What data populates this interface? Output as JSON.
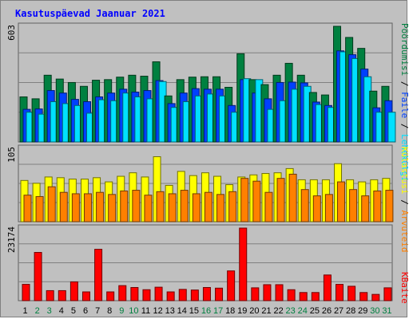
{
  "title": "Kasutuspäevad Jaanuar 2021",
  "colors": {
    "background": "#c0c0c0",
    "panel": "#c0c0c0",
    "grid": "#808080",
    "hits": "#008040",
    "files": "#0040ff",
    "pages": "#00e0ff",
    "visits": "#ffff00",
    "sites": "#ff8000",
    "kbytes": "#ff0000",
    "weekday_label": "#000000",
    "weekend_label": "#008040"
  },
  "chart_data": [
    {
      "type": "bar",
      "panel": "top",
      "ymax_label": "603",
      "ylim": [
        0,
        603
      ],
      "right_labels": [
        "Pöördumisi",
        "Faile",
        "Lehekülgi"
      ],
      "categories": [
        "1",
        "2",
        "3",
        "4",
        "5",
        "6",
        "7",
        "8",
        "9",
        "10",
        "11",
        "12",
        "13",
        "14",
        "15",
        "16",
        "17",
        "18",
        "19",
        "20",
        "21",
        "22",
        "23",
        "24",
        "25",
        "26",
        "27",
        "28",
        "29",
        "30",
        "31"
      ],
      "series": [
        {
          "name": "Pöördumisi",
          "values": [
            235,
            225,
            348,
            328,
            310,
            290,
            322,
            325,
            338,
            348,
            343,
            418,
            240,
            325,
            338,
            340,
            340,
            285,
            460,
            325,
            299,
            348,
            410,
            348,
            258,
            245,
            603,
            545,
            488,
            265,
            290
          ]
        },
        {
          "name": "Faile",
          "values": [
            170,
            172,
            268,
            255,
            222,
            210,
            235,
            255,
            275,
            260,
            268,
            320,
            200,
            255,
            278,
            275,
            275,
            190,
            325,
            255,
            225,
            310,
            312,
            308,
            208,
            190,
            475,
            455,
            380,
            178,
            215
          ]
        },
        {
          "name": "Lehekülgi",
          "values": [
            155,
            145,
            210,
            200,
            190,
            150,
            220,
            215,
            255,
            235,
            225,
            315,
            180,
            210,
            240,
            250,
            240,
            155,
            330,
            325,
            170,
            215,
            275,
            290,
            195,
            180,
            470,
            435,
            340,
            155,
            155
          ]
        }
      ]
    },
    {
      "type": "bar",
      "panel": "middle",
      "ymax_label": "105",
      "ylim": [
        0,
        105
      ],
      "right_labels": [
        "Arvuteid",
        "Külastusi"
      ],
      "series": [
        {
          "name": "Külastusi",
          "values": [
            59,
            55,
            64,
            63,
            61,
            61,
            63,
            57,
            65,
            70,
            64,
            93,
            52,
            72,
            66,
            70,
            65,
            53,
            64,
            67,
            69,
            70,
            76,
            60,
            60,
            60,
            83,
            60,
            57,
            60,
            62
          ]
        },
        {
          "name": "Arvuteid",
          "values": [
            38,
            36,
            50,
            42,
            40,
            40,
            42,
            39,
            44,
            45,
            38,
            43,
            40,
            45,
            40,
            42,
            39,
            43,
            62,
            58,
            42,
            62,
            68,
            46,
            37,
            39,
            57,
            46,
            37,
            44,
            45
          ]
        }
      ]
    },
    {
      "type": "bar",
      "panel": "bottom",
      "ymax_label": "23174",
      "ylim": [
        0,
        23174
      ],
      "right_labels": [
        "KBaite"
      ],
      "series": [
        {
          "name": "KBaite",
          "values": [
            5200,
            15400,
            3200,
            3200,
            6000,
            2800,
            16400,
            2800,
            4800,
            4200,
            3500,
            4300,
            2800,
            3600,
            3400,
            4200,
            4000,
            9500,
            23174,
            4100,
            5100,
            5100,
            3500,
            2600,
            2600,
            8200,
            5200,
            4600,
            2600,
            2000,
            4100
          ]
        }
      ]
    }
  ]
}
